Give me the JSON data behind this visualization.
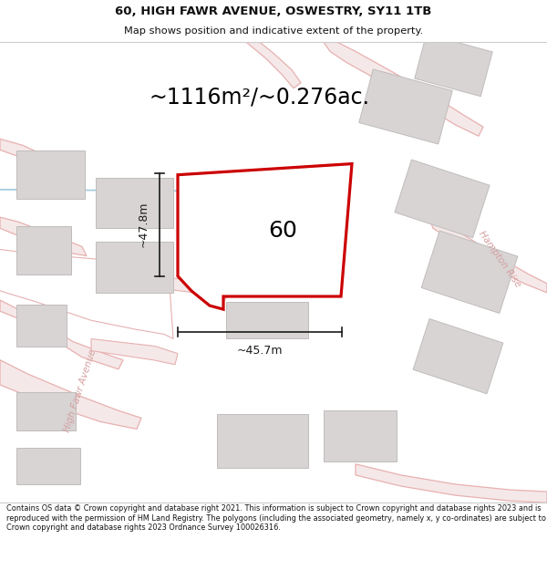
{
  "title_line1": "60, HIGH FAWR AVENUE, OSWESTRY, SY11 1TB",
  "title_line2": "Map shows position and indicative extent of the property.",
  "area_text": "~1116m²/~0.276ac.",
  "label_60": "60",
  "dim_vertical": "~47.8m",
  "dim_horizontal": "~45.7m",
  "street_label1": "High Fawr Avenue",
  "street_label2": "Hampton Rise",
  "footer_text": "Contains OS data © Crown copyright and database right 2021. This information is subject to Crown copyright and database rights 2023 and is reproduced with the permission of HM Land Registry. The polygons (including the associated geometry, namely x, y co-ordinates) are subject to Crown copyright and database rights 2023 Ordnance Survey 100026316.",
  "map_bg": "#f9f6f6",
  "road_line_color": "#e8b0b0",
  "road_fill_color": "#f5e8e8",
  "building_face": "#d8d4d4",
  "building_edge": "#c0bcbc",
  "property_edge": "#cc0000",
  "property_fill": "#ffffff",
  "dim_color": "#1a1a1a",
  "street_color": "#d4a0a0",
  "water_color": "#a8cce0",
  "title_color": "#111111",
  "footer_color": "#111111"
}
